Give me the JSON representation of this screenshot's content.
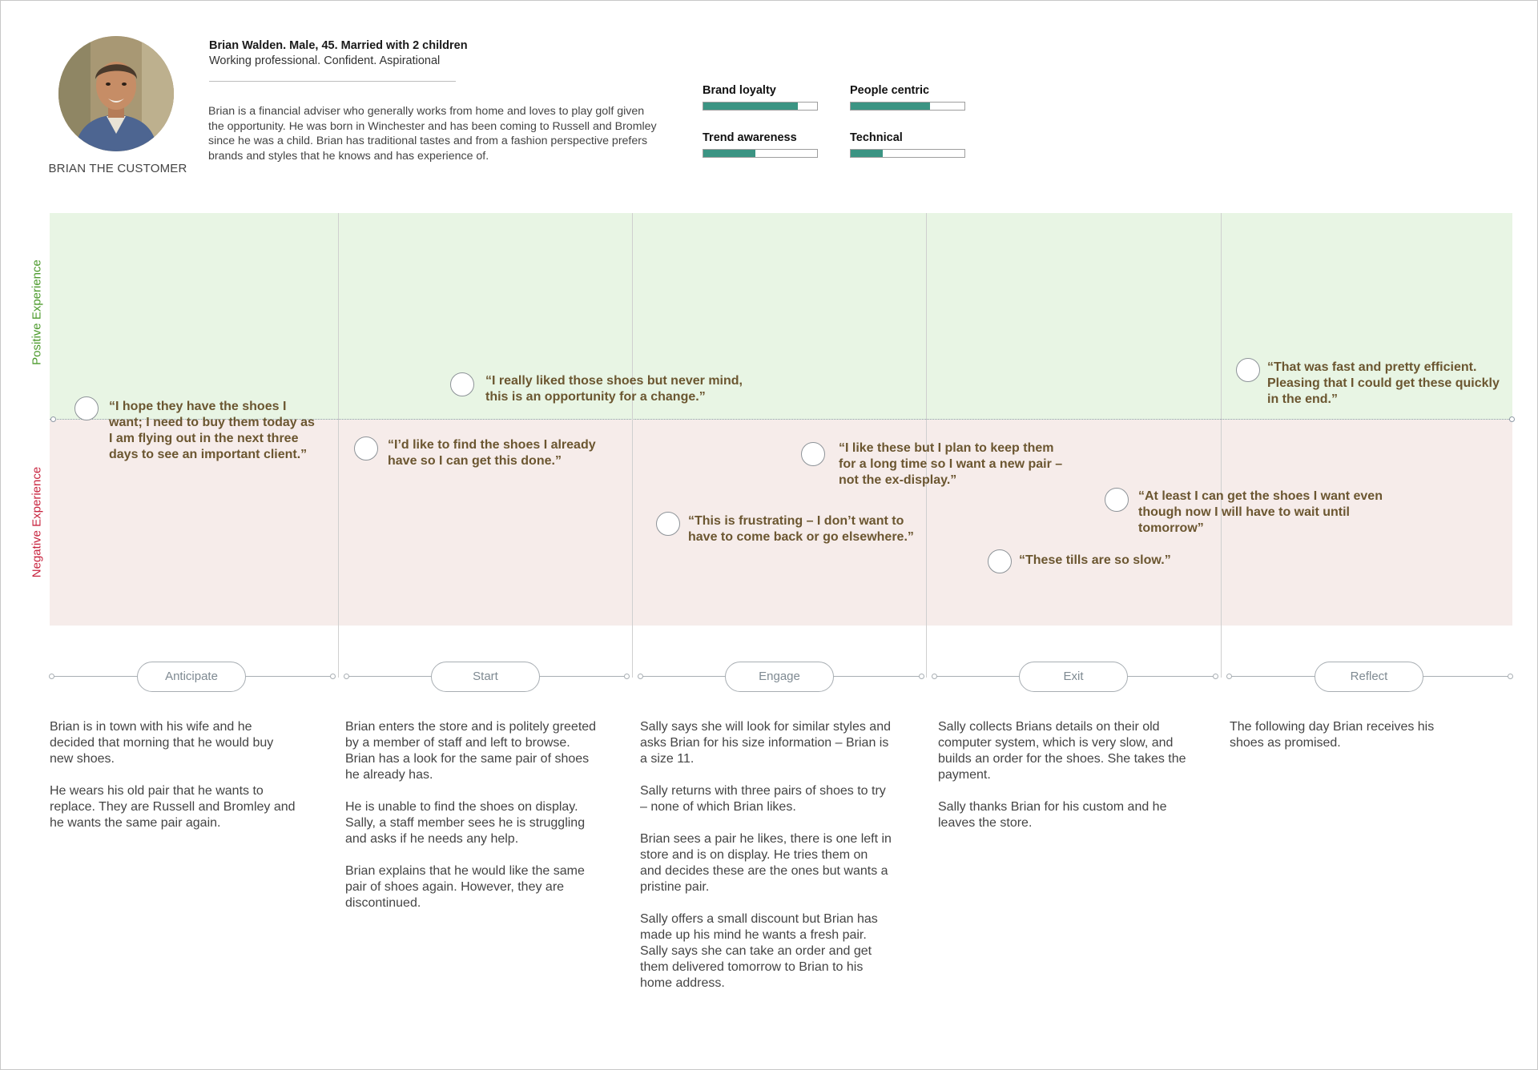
{
  "persona": {
    "label": "BRIAN THE CUSTOMER",
    "name": "Brian Walden. Male, 45. Married with 2 children",
    "tagline": "Working professional. Confident. Aspirational",
    "bio": "Brian is a financial adviser who generally works from home and loves to play golf given the opportunity.  He was born in Winchester and has been coming to Russell and Bromley since he was a child.  Brian has traditional tastes and from a fashion perspective prefers brands and styles that he knows and has experience of."
  },
  "traits": [
    {
      "label": "Brand loyalty",
      "level": 0.83
    },
    {
      "label": "People centric",
      "level": 0.7
    },
    {
      "label": "Trend awareness",
      "level": 0.46
    },
    {
      "label": "Technical",
      "level": 0.28
    }
  ],
  "axis": {
    "positive_label": "Positive Experience",
    "negative_label": "Negative Experience"
  },
  "stages": [
    "Anticipate",
    "Start",
    "Engage",
    "Exit",
    "Reflect"
  ],
  "quotes": [
    "“I hope they have the shoes I want;  I need to buy them today as I am flying out in the next three days to see an important client.”",
    "“I’d like to find the shoes I already have so I can get this done.”",
    "“I really liked those shoes but never mind, this is an opportunity for a change.”",
    "“This is frustrating – I don’t want to have to come back or go elsewhere.”",
    "“I like these but I plan to keep them for a long time so I want a new pair – not the ex-display.”",
    "“These tills are so slow.”",
    "“At least I can get the shoes I want even though now I will have to wait until tomorrow”",
    "“That was fast and pretty efficient. Pleasing that I could get these quickly in the end.”"
  ],
  "descriptions": [
    [
      "Brian is in town with his wife and he decided that morning that he would buy new shoes.",
      "He wears his old pair that he wants to replace. They are Russell and Bromley and he wants the same pair again."
    ],
    [
      "Brian enters the store and is politely greeted by a member of staff and left to browse.  Brian has a look for the same pair of shoes he already has.",
      "He is unable to find the shoes on display. Sally, a staff member sees he is struggling and asks if he needs any help.",
      "Brian explains that he would like the same pair of shoes again.  However, they are discontinued."
    ],
    [
      "Sally says she will look for similar styles and asks Brian for his size information – Brian is a size 11.",
      "Sally returns with three pairs of shoes to try – none of which Brian likes.",
      "Brian sees a pair he likes, there is one left in store and is on display.  He tries them on and decides these are the ones but wants a pristine pair.",
      "Sally offers a small discount but Brian has made up his mind he wants a fresh pair. Sally says she can take an order and get them delivered tomorrow to Brian to his home address."
    ],
    [
      "Sally collects Brians details on their old computer system, which is very slow, and builds an order for the shoes.  She takes the payment.",
      "Sally thanks Brian for his custom and he leaves the store."
    ],
    [
      "The following day Brian receives his shoes as promised."
    ]
  ],
  "colors": {
    "positive_zone": "#e8f5e4",
    "negative_zone": "#f6ecea",
    "positive_label": "#4b9a2b",
    "negative_label": "#c8243f",
    "quote_text": "#6b5630",
    "trait_fill": "#3b9483"
  }
}
